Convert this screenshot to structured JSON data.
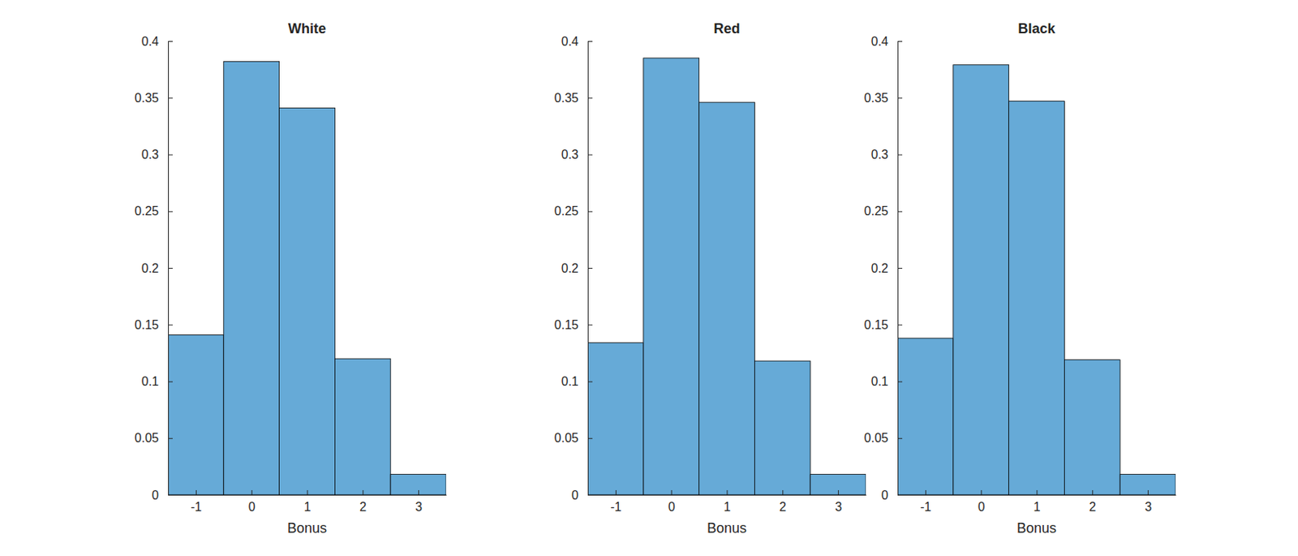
{
  "chart_data": [
    {
      "type": "histogram",
      "title": "White",
      "x_label": "Bonus",
      "bins": [
        -1.5,
        -0.5,
        0.5,
        1.5,
        2.5,
        3.5
      ],
      "values": [
        0.141,
        0.382,
        0.341,
        0.12,
        0.018
      ],
      "color": "#66aad7",
      "xlim": [
        -1.5,
        3.5
      ],
      "xticks": [
        -1,
        0,
        1,
        2,
        3
      ],
      "ylim": [
        0,
        0.4
      ],
      "yticks": [
        0,
        0.05,
        0.1,
        0.15,
        0.2,
        0.25,
        0.3,
        0.35,
        0.4
      ]
    },
    {
      "type": "histogram",
      "title": "Red",
      "x_label": "Bonus",
      "bins": [
        -1.5,
        -0.5,
        0.5,
        1.5,
        2.5,
        3.5
      ],
      "values": [
        0.134,
        0.385,
        0.346,
        0.118,
        0.018
      ],
      "color": "#66aad7",
      "xlim": [
        -1.5,
        3.5
      ],
      "xticks": [
        -1,
        0,
        1,
        2,
        3
      ],
      "ylim": [
        0,
        0.4
      ],
      "yticks": [
        0,
        0.05,
        0.1,
        0.15,
        0.2,
        0.25,
        0.3,
        0.35,
        0.4
      ]
    },
    {
      "type": "histogram",
      "title": "Black",
      "x_label": "Bonus",
      "bins": [
        -1.5,
        -0.5,
        0.5,
        1.5,
        2.5,
        3.5
      ],
      "values": [
        0.138,
        0.379,
        0.347,
        0.119,
        0.018
      ],
      "color": "#66aad7",
      "xlim": [
        -1.5,
        3.5
      ],
      "xticks": [
        -1,
        0,
        1,
        2,
        3
      ],
      "ylim": [
        0,
        0.4
      ],
      "yticks": [
        0,
        0.05,
        0.1,
        0.15,
        0.2,
        0.25,
        0.3,
        0.35,
        0.4
      ]
    }
  ]
}
